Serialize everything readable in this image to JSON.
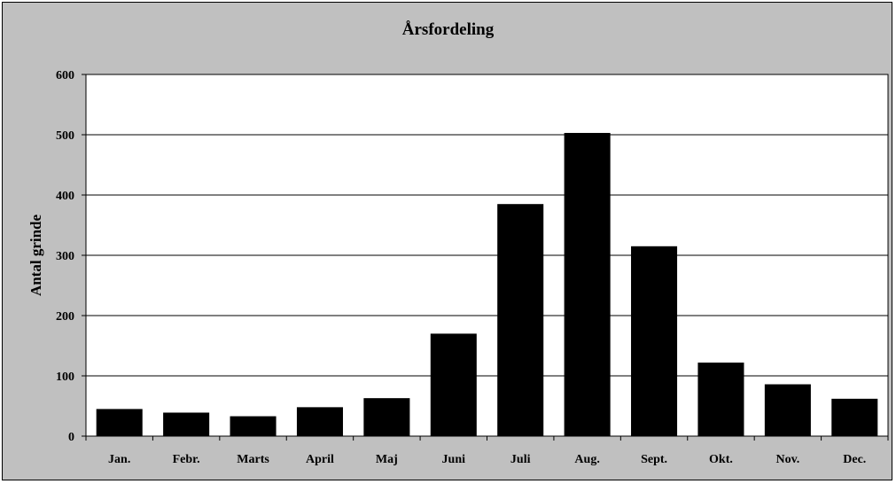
{
  "chart_data": {
    "type": "bar",
    "title": "Årsfordeling",
    "xlabel": "",
    "ylabel": "Antal grinde",
    "categories": [
      "Jan.",
      "Febr.",
      "Marts",
      "April",
      "Maj",
      "Juni",
      "Juli",
      "Aug.",
      "Sept.",
      "Okt.",
      "Nov.",
      "Dec."
    ],
    "values": [
      45,
      39,
      33,
      48,
      63,
      170,
      385,
      503,
      315,
      122,
      86,
      62
    ],
    "ylim": [
      0,
      600
    ],
    "yticks": [
      0,
      100,
      200,
      300,
      400,
      500,
      600
    ],
    "grid": true,
    "legend": "none",
    "colors": {
      "bar": "#000000",
      "plot_background": "#ffffff",
      "chart_background": "#c0c0c0",
      "gridline": "#000000"
    }
  }
}
